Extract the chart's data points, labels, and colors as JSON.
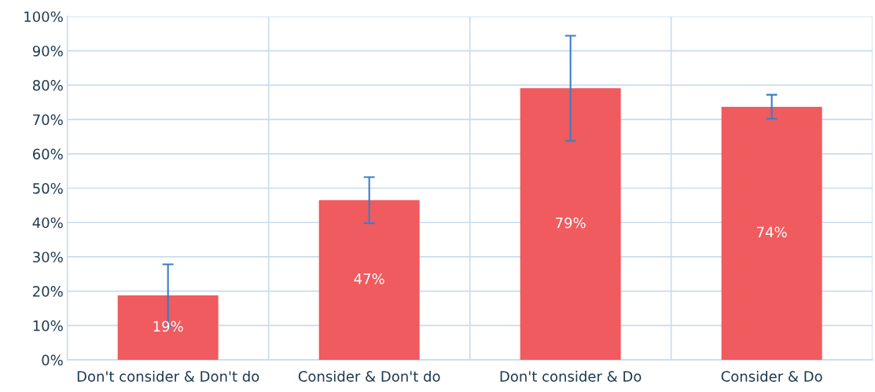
{
  "chart_data": {
    "type": "bar",
    "categories": [
      "Don't consider & Don't do",
      "Consider & Don't do",
      "Don't consider & Do",
      "Consider & Do"
    ],
    "values": [
      18.8,
      46.5,
      79.1,
      73.7
    ],
    "errors": [
      9,
      6.7,
      15.3,
      3.5
    ],
    "value_labels": [
      "19%",
      "47%",
      "79%",
      "74%"
    ],
    "color": "#ef5b5e",
    "ylim": [
      0,
      100
    ],
    "yticks": [
      {
        "value": 0,
        "label": "0%"
      },
      {
        "value": 10,
        "label": "10%"
      },
      {
        "value": 20,
        "label": "20%"
      },
      {
        "value": 30,
        "label": "30%"
      },
      {
        "value": 40,
        "label": "40%"
      },
      {
        "value": 50,
        "label": "50%"
      },
      {
        "value": 60,
        "label": "60%"
      },
      {
        "value": 70,
        "label": "70%"
      },
      {
        "value": 80,
        "label": "80%"
      },
      {
        "value": 90,
        "label": "90%"
      },
      {
        "value": 100,
        "label": "100%"
      }
    ],
    "grid": true,
    "legend": false
  }
}
